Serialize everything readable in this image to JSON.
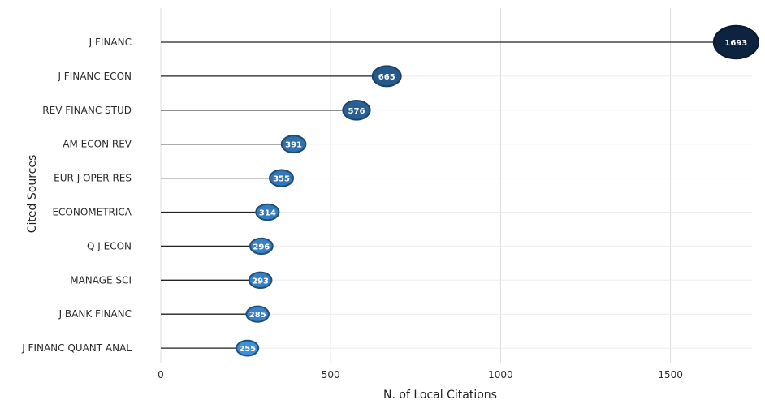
{
  "chart_data": {
    "type": "lollipop",
    "xlabel": "N. of Local Citations",
    "ylabel": "Cited Sources",
    "xlim": [
      0,
      1740
    ],
    "xticks": [
      0,
      500,
      1000,
      1500
    ],
    "categories": [
      "J FINANC",
      "J FINANC ECON",
      "REV FINANC STUD",
      "AM ECON REV",
      "EUR J OPER RES",
      "ECONOMETRICA",
      "Q J ECON",
      "MANAGE SCI",
      "J BANK FINANC",
      "J FINANC QUANT ANAL"
    ],
    "values": [
      1693,
      665,
      576,
      391,
      355,
      314,
      296,
      293,
      285,
      255
    ],
    "color_scale": {
      "low": "#3d8fd9",
      "high": "#0d2340"
    },
    "grid": true
  }
}
